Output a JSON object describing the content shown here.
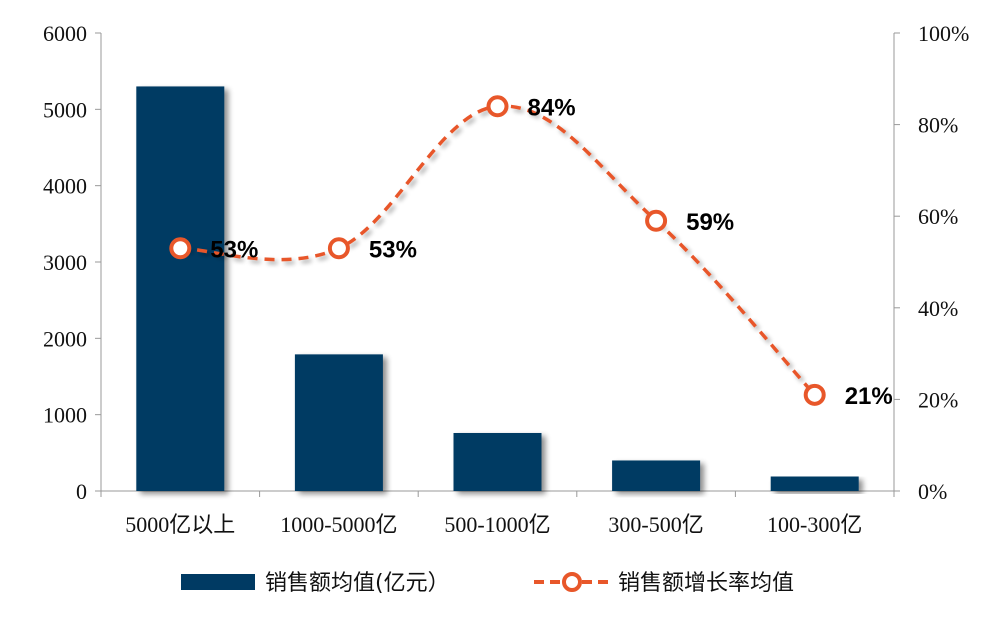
{
  "chart_data": {
    "type": "bar+line",
    "categories": [
      "5000亿以上",
      "1000-5000亿",
      "500-1000亿",
      "300-500亿",
      "100-300亿"
    ],
    "series": [
      {
        "name": "销售额均值(亿元）",
        "type": "bar",
        "axis": "left",
        "values": [
          5300,
          1790,
          760,
          400,
          190
        ],
        "color": "#003A63"
      },
      {
        "name": "销售额增长率均值",
        "type": "line",
        "axis": "right",
        "values": [
          53,
          53,
          84,
          59,
          21
        ],
        "labels": [
          "53%",
          "53%",
          "84%",
          "59%",
          "21%"
        ],
        "color": "#E8572A"
      }
    ],
    "y_left": {
      "ylim": [
        0,
        6000
      ],
      "ticks": [
        "0",
        "1000",
        "2000",
        "3000",
        "4000",
        "5000",
        "6000"
      ]
    },
    "y_right": {
      "ylim": [
        0,
        100
      ],
      "ticks": [
        "0%",
        "20%",
        "40%",
        "60%",
        "80%",
        "100%"
      ]
    },
    "grid": false,
    "legend_position": "bottom"
  }
}
